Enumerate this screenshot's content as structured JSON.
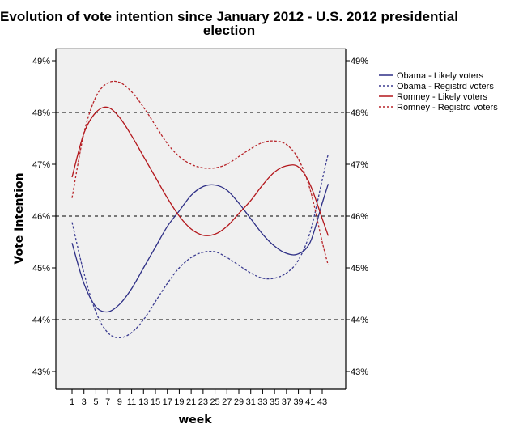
{
  "chart_data": {
    "type": "line",
    "title_lines": [
      "Evolution of vote intention since January 2012 -  U.S. 2012 presidential",
      "election"
    ],
    "xlabel": "week",
    "ylabel": "Vote Intention",
    "xlim": [
      -1.5,
      47
    ],
    "ylim": [
      42.7,
      49.3
    ],
    "x_ticks": [
      1,
      3,
      5,
      7,
      9,
      11,
      13,
      15,
      17,
      19,
      21,
      23,
      25,
      27,
      29,
      31,
      33,
      35,
      37,
      39,
      41,
      43
    ],
    "y_ticks": [
      43,
      44,
      45,
      46,
      47,
      48,
      49
    ],
    "y_tick_labels": [
      "43%",
      "44%",
      "45%",
      "46%",
      "47%",
      "48%",
      "49%"
    ],
    "reference_lines": [
      44,
      46,
      48
    ],
    "legend_position": "right",
    "grid": false,
    "x": [
      1,
      3,
      5,
      7,
      9,
      11,
      13,
      15,
      17,
      19,
      21,
      23,
      25,
      27,
      29,
      31,
      33,
      35,
      37,
      39,
      41,
      43,
      44
    ],
    "series": [
      {
        "name": "Obama - Likely voters",
        "color": "#2e2f86",
        "style": "solid",
        "values": [
          45.48,
          44.7,
          44.25,
          44.15,
          44.3,
          44.6,
          45.0,
          45.4,
          45.8,
          46.1,
          46.4,
          46.57,
          46.6,
          46.5,
          46.25,
          45.95,
          45.65,
          45.42,
          45.28,
          45.27,
          45.5,
          46.25,
          46.62
        ]
      },
      {
        "name": "Obama - Registrd voters",
        "color": "#3b3c91",
        "style": "dashed",
        "values": [
          45.88,
          44.9,
          44.15,
          43.75,
          43.65,
          43.75,
          44.0,
          44.35,
          44.7,
          45.0,
          45.2,
          45.3,
          45.31,
          45.2,
          45.05,
          44.9,
          44.8,
          44.8,
          44.9,
          45.15,
          45.7,
          46.7,
          47.2
        ]
      },
      {
        "name": "Romney - Likely voters",
        "color": "#b3161b",
        "style": "solid",
        "values": [
          46.75,
          47.6,
          48.0,
          48.1,
          47.9,
          47.55,
          47.15,
          46.75,
          46.35,
          46.0,
          45.75,
          45.63,
          45.65,
          45.8,
          46.05,
          46.3,
          46.6,
          46.85,
          46.97,
          46.95,
          46.6,
          45.95,
          45.62
        ]
      },
      {
        "name": "Romney - Registrd voters",
        "color": "#b72328",
        "style": "dashed",
        "values": [
          46.35,
          47.6,
          48.3,
          48.57,
          48.58,
          48.4,
          48.1,
          47.75,
          47.4,
          47.15,
          47.0,
          46.93,
          46.93,
          47.0,
          47.15,
          47.3,
          47.42,
          47.45,
          47.38,
          47.1,
          46.5,
          45.5,
          45.05
        ]
      }
    ]
  }
}
